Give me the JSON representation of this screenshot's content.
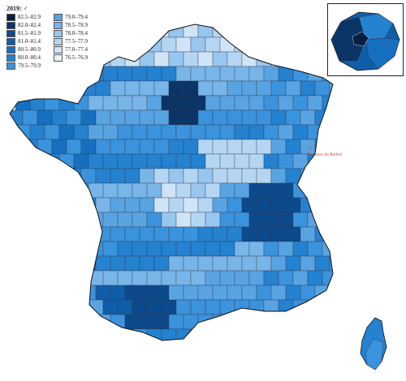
{
  "legend": {
    "title": "2019: ♂",
    "bins": [
      {
        "range": "82.5–82.9",
        "color": "#08203f"
      },
      {
        "range": "82.0–82.4",
        "color": "#0b3566"
      },
      {
        "range": "81.5–81.9",
        "color": "#0d4a8c"
      },
      {
        "range": "81.0–81.4",
        "color": "#105ea8"
      },
      {
        "range": "80.5–80.9",
        "color": "#1670bf"
      },
      {
        "range": "80.0–80.4",
        "color": "#2482d0"
      },
      {
        "range": "79.5–79.9",
        "color": "#3a93dc"
      },
      {
        "range": "79.0–79.4",
        "color": "#58a4e2"
      },
      {
        "range": "78.5–78.9",
        "color": "#78b5e8"
      },
      {
        "range": "78.0–78.4",
        "color": "#97c6ee"
      },
      {
        "range": "77.5–77.9",
        "color": "#b4d6f3"
      },
      {
        "range": "77.0–77.4",
        "color": "#cfe4f7"
      },
      {
        "range": "76.5–76.9",
        "color": "#e8f2fb"
      }
    ]
  },
  "annotation": "Territoire de Belfort",
  "colors": {
    "border": "#334",
    "outline": "#111"
  }
}
